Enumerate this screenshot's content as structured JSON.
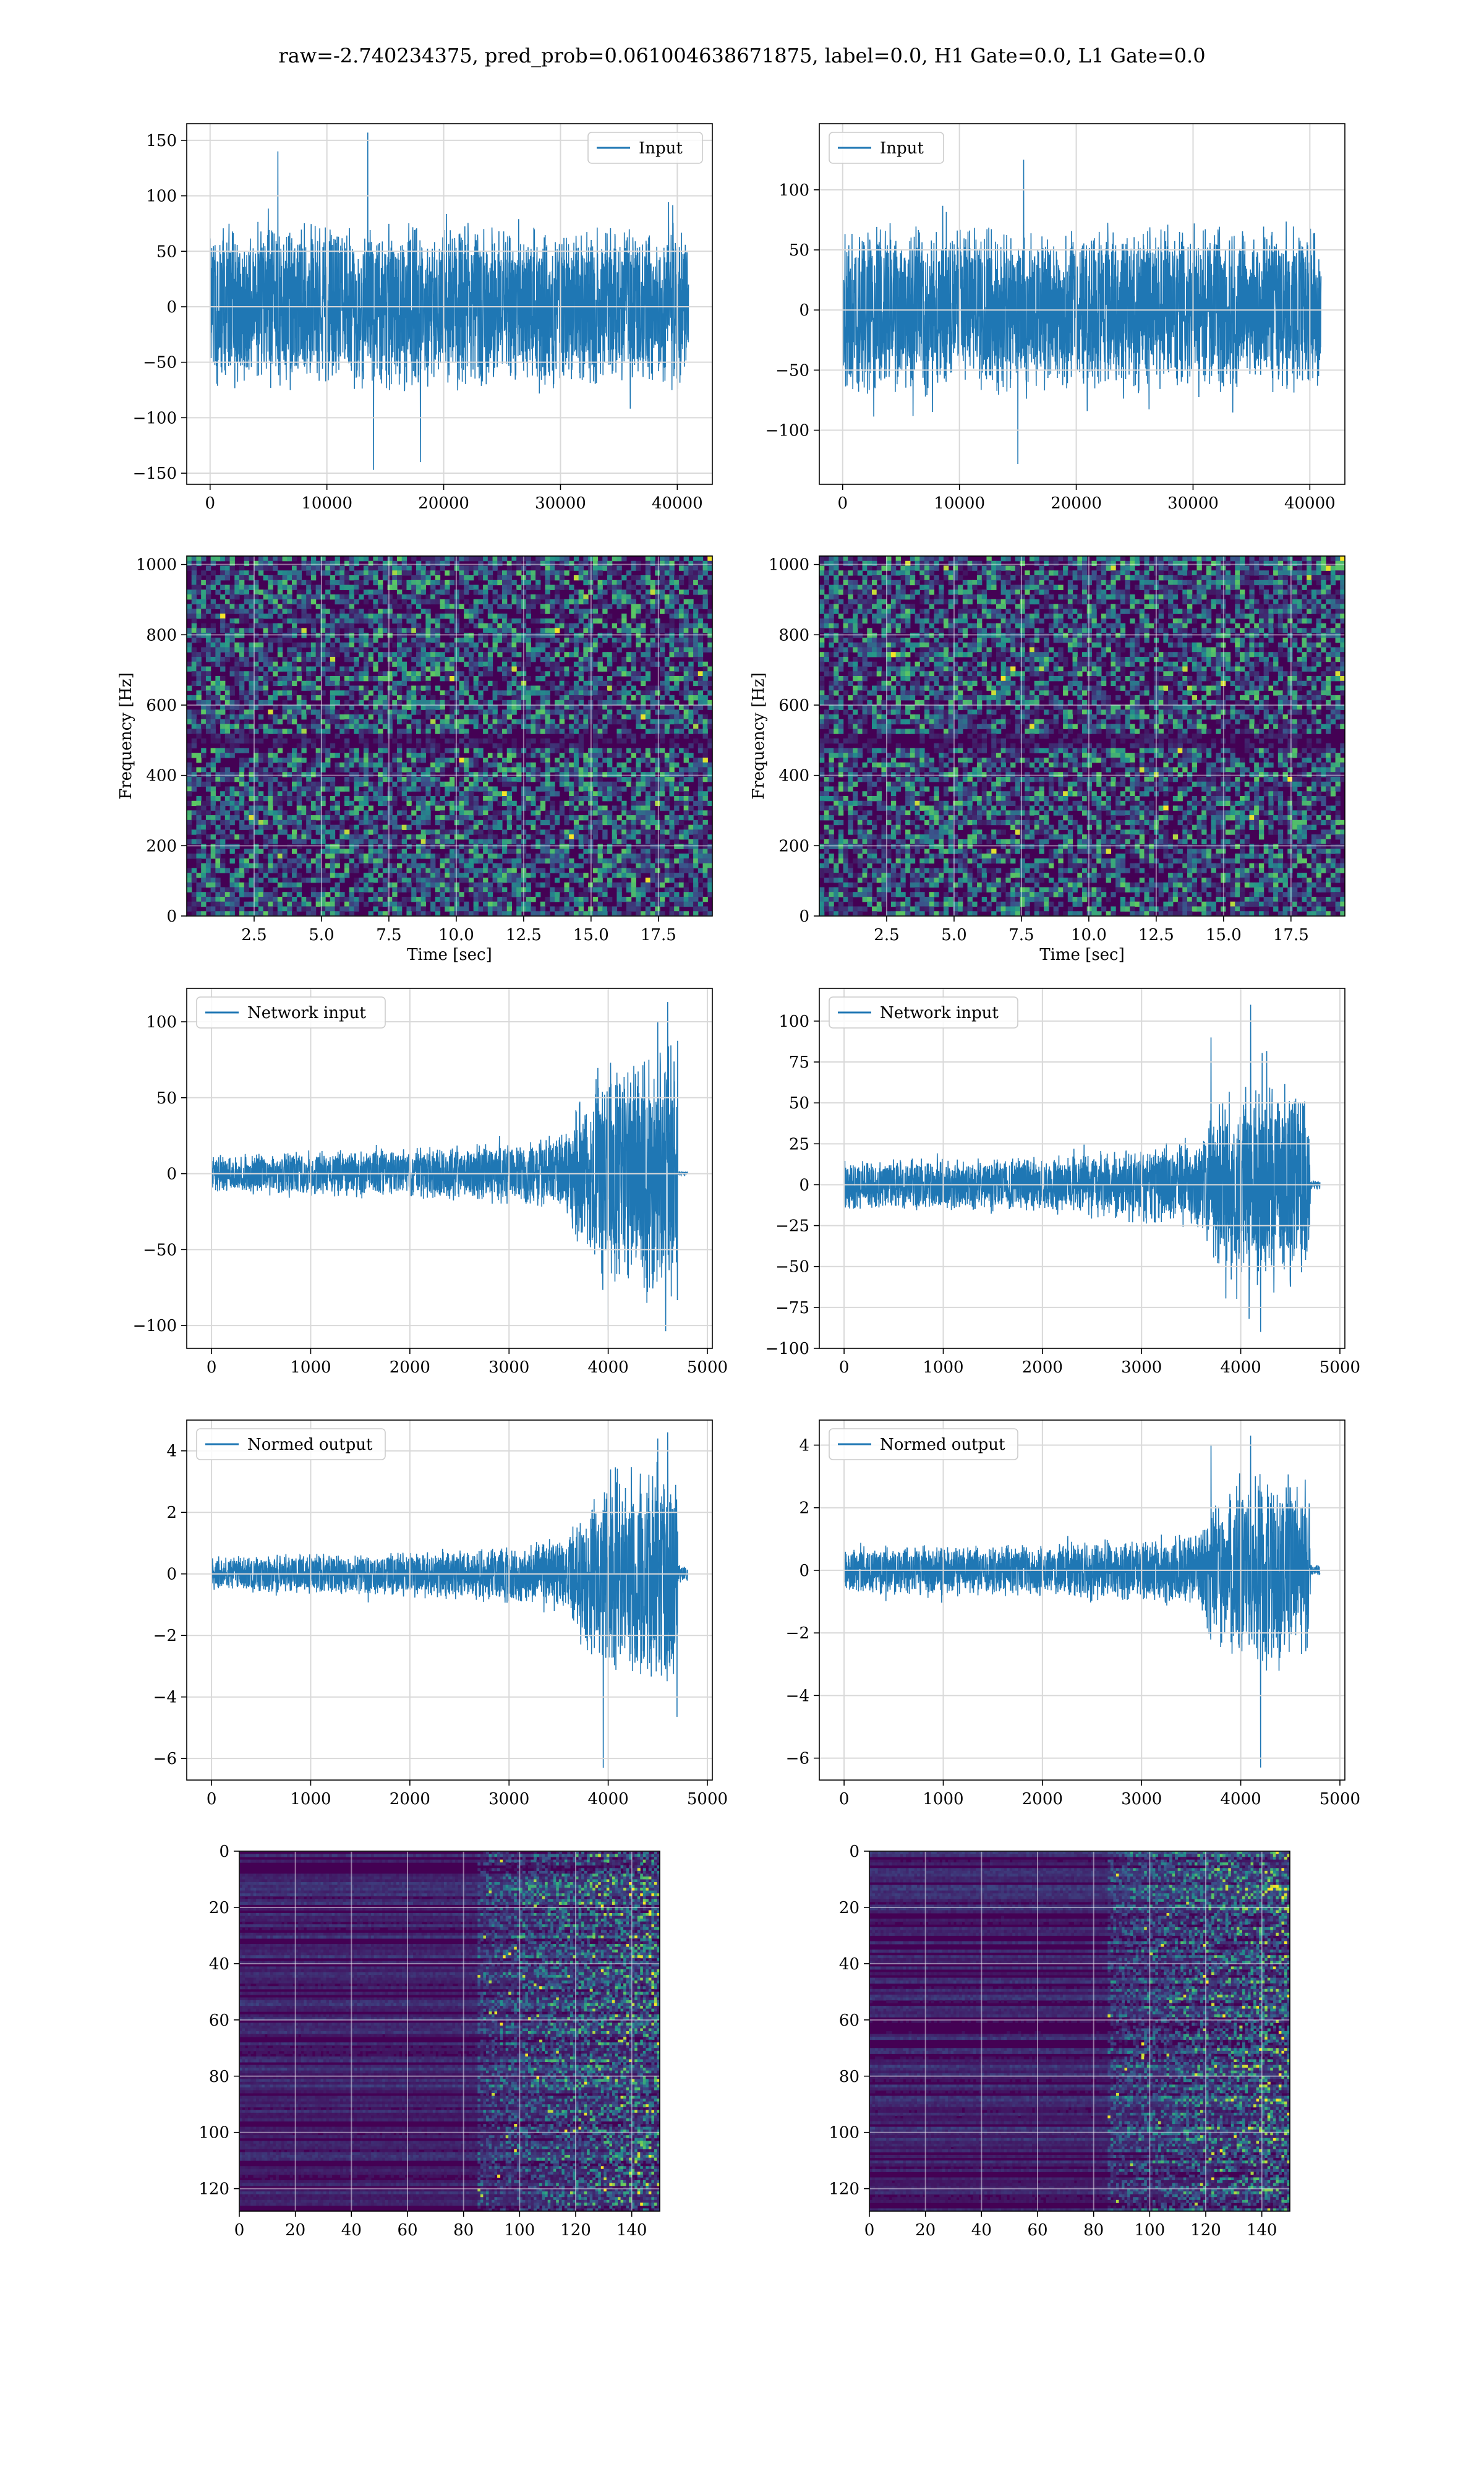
{
  "suptitle": "raw=-2.740234375, pred_prob=0.061004638671875, label=0.0, H1 Gate=0.0, L1 Gate=0.0",
  "colors": {
    "line": "#1f77b4",
    "grid": "#d9d9d9",
    "viridis_low": "#440154",
    "viridis_mid": "#21918c",
    "viridis_high": "#fde725"
  },
  "chart_data": [
    {
      "id": "input-h1",
      "type": "line",
      "legend": "Input",
      "legend_loc": "upper right",
      "xlim": [
        -2000,
        43000
      ],
      "ylim": [
        -160,
        165
      ],
      "xticks": [
        0,
        10000,
        20000,
        30000,
        40000
      ],
      "yticks": [
        -150,
        -100,
        -50,
        0,
        50,
        100,
        150
      ],
      "signal": {
        "x_start": 0,
        "x_end": 40960,
        "envelope": [
          [
            0,
            80
          ],
          [
            40960,
            80
          ]
        ],
        "peaks": [
          [
            5800,
            140
          ],
          [
            13500,
            157
          ],
          [
            14000,
            -147
          ],
          [
            18000,
            -140
          ]
        ]
      },
      "grid": true
    },
    {
      "id": "input-l1",
      "type": "line",
      "legend": "Input",
      "legend_loc": "upper left",
      "xlim": [
        -2000,
        43000
      ],
      "ylim": [
        -145,
        155
      ],
      "xticks": [
        0,
        10000,
        20000,
        30000,
        40000
      ],
      "yticks": [
        -100,
        -50,
        0,
        50,
        100
      ],
      "signal": {
        "x_start": 0,
        "x_end": 40960,
        "envelope": [
          [
            0,
            75
          ],
          [
            40960,
            75
          ]
        ],
        "peaks": [
          [
            15500,
            125
          ],
          [
            15000,
            -128
          ]
        ]
      },
      "grid": true
    },
    {
      "id": "spec-h1",
      "type": "heatmap",
      "ylabel": "Frequency [Hz]",
      "xlabel": "Time [sec]",
      "xlim": [
        0,
        19.5
      ],
      "ylim": [
        0,
        1024
      ],
      "xticks": [
        2.5,
        5.0,
        7.5,
        10.0,
        12.5,
        15.0,
        17.5
      ],
      "yticks": [
        0,
        200,
        400,
        600,
        800,
        1000
      ],
      "dark_band_hz": [
        480,
        520
      ],
      "grid": true
    },
    {
      "id": "spec-l1",
      "type": "heatmap",
      "ylabel": "Frequency [Hz]",
      "xlabel": "Time [sec]",
      "xlim": [
        0,
        19.5
      ],
      "ylim": [
        0,
        1024
      ],
      "xticks": [
        2.5,
        5.0,
        7.5,
        10.0,
        12.5,
        15.0,
        17.5
      ],
      "yticks": [
        0,
        200,
        400,
        600,
        800,
        1000
      ],
      "dark_band_hz": [
        480,
        520
      ],
      "grid": true
    },
    {
      "id": "net-h1",
      "type": "line",
      "legend": "Network input",
      "legend_loc": "upper left",
      "xlim": [
        -250,
        5050
      ],
      "ylim": [
        -115,
        122
      ],
      "xticks": [
        0,
        1000,
        2000,
        3000,
        4000,
        5000
      ],
      "yticks": [
        -100,
        -50,
        0,
        50,
        100
      ],
      "signal": {
        "x_start": 0,
        "x_end": 4800,
        "active_end": 4700,
        "envelope": [
          [
            0,
            13
          ],
          [
            2000,
            18
          ],
          [
            3000,
            22
          ],
          [
            3600,
            30
          ],
          [
            3700,
            55
          ],
          [
            4000,
            80
          ],
          [
            4300,
            85
          ],
          [
            4700,
            90
          ]
        ],
        "peaks": [
          [
            4000,
            -103
          ],
          [
            4600,
            113
          ],
          [
            4500,
            100
          ]
        ],
        "flat_tail": 2
      },
      "grid": true
    },
    {
      "id": "net-l1",
      "type": "line",
      "legend": "Network input",
      "legend_loc": "upper left",
      "xlim": [
        -250,
        5050
      ],
      "ylim": [
        -100,
        120
      ],
      "xticks": [
        0,
        1000,
        2000,
        3000,
        4000,
        5000
      ],
      "yticks": [
        -100,
        -75,
        -50,
        -25,
        0,
        25,
        50,
        75,
        100
      ],
      "signal": {
        "x_start": 0,
        "x_end": 4800,
        "active_end": 4700,
        "envelope": [
          [
            0,
            16
          ],
          [
            2000,
            18
          ],
          [
            3000,
            24
          ],
          [
            3600,
            30
          ],
          [
            3700,
            50
          ],
          [
            4000,
            65
          ],
          [
            4400,
            70
          ],
          [
            4700,
            60
          ]
        ],
        "peaks": [
          [
            4100,
            110
          ],
          [
            4200,
            -90
          ],
          [
            3700,
            90
          ]
        ],
        "flat_tail": 3
      },
      "grid": true
    },
    {
      "id": "norm-h1",
      "type": "line",
      "legend": "Normed output",
      "legend_loc": "upper left",
      "xlim": [
        -250,
        5050
      ],
      "ylim": [
        -6.7,
        5.0
      ],
      "xticks": [
        0,
        1000,
        2000,
        3000,
        4000,
        5000
      ],
      "yticks": [
        -6,
        -4,
        -2,
        0,
        2,
        4
      ],
      "signal": {
        "x_start": 0,
        "x_end": 4800,
        "active_end": 4700,
        "envelope": [
          [
            0,
            0.6
          ],
          [
            2000,
            0.8
          ],
          [
            3000,
            1.0
          ],
          [
            3600,
            1.3
          ],
          [
            3700,
            2.5
          ],
          [
            4000,
            3.5
          ],
          [
            4300,
            3.8
          ],
          [
            4700,
            4.0
          ]
        ],
        "peaks": [
          [
            3950,
            -6.3
          ],
          [
            4600,
            4.6
          ],
          [
            4500,
            4.4
          ]
        ],
        "flat_tail": 0.3
      },
      "grid": true
    },
    {
      "id": "norm-l1",
      "type": "line",
      "legend": "Normed output",
      "legend_loc": "upper left",
      "xlim": [
        -250,
        5050
      ],
      "ylim": [
        -6.7,
        4.8
      ],
      "xticks": [
        0,
        1000,
        2000,
        3000,
        4000,
        5000
      ],
      "yticks": [
        -6,
        -4,
        -2,
        0,
        2,
        4
      ],
      "signal": {
        "x_start": 0,
        "x_end": 4800,
        "active_end": 4700,
        "envelope": [
          [
            0,
            0.8
          ],
          [
            2000,
            0.9
          ],
          [
            3000,
            1.1
          ],
          [
            3600,
            1.3
          ],
          [
            3700,
            2.5
          ],
          [
            4000,
            3.2
          ],
          [
            4400,
            3.4
          ],
          [
            4700,
            3.0
          ]
        ],
        "peaks": [
          [
            4100,
            4.3
          ],
          [
            4200,
            -6.3
          ],
          [
            3700,
            4.0
          ]
        ],
        "flat_tail": 0.2
      },
      "grid": true
    },
    {
      "id": "img-h1",
      "type": "heatmap",
      "xlim": [
        0,
        150
      ],
      "ylim": [
        128,
        0
      ],
      "xticks": [
        0,
        20,
        40,
        60,
        80,
        100,
        120,
        140
      ],
      "yticks": [
        0,
        20,
        40,
        60,
        80,
        100,
        120
      ],
      "activity_onset_col": 85,
      "grid": true
    },
    {
      "id": "img-l1",
      "type": "heatmap",
      "xlim": [
        0,
        150
      ],
      "ylim": [
        128,
        0
      ],
      "xticks": [
        0,
        20,
        40,
        60,
        80,
        100,
        120,
        140
      ],
      "yticks": [
        0,
        20,
        40,
        60,
        80,
        100,
        120
      ],
      "activity_onset_col": 85,
      "grid": true
    }
  ]
}
